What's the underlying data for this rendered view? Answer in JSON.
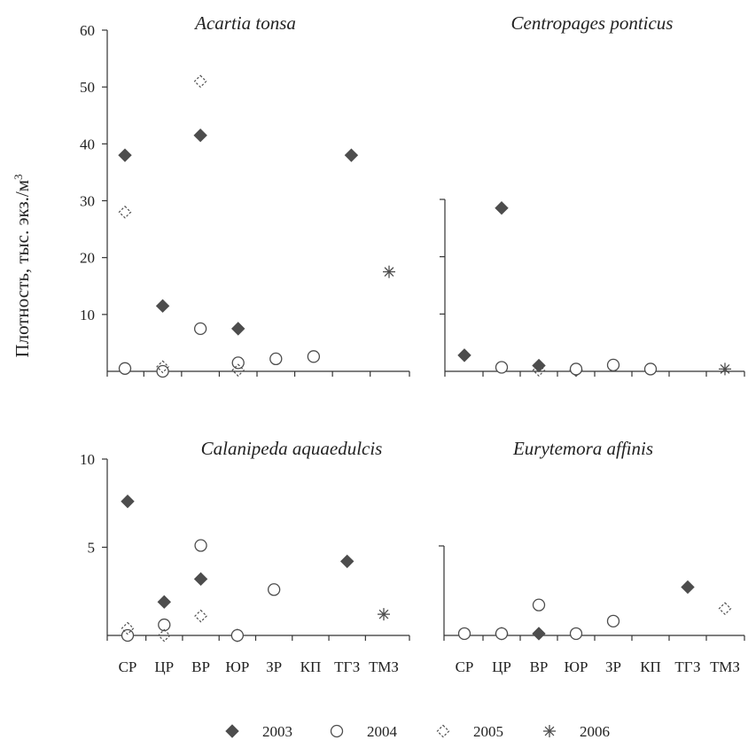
{
  "ylabel": "Плотность, тыс. экз./м",
  "ylabel_sup": "3",
  "categories": [
    "СР",
    "ЦР",
    "ВР",
    "ЮР",
    "ЗР",
    "КП",
    "ТГЗ",
    "ТМЗ"
  ],
  "legend": [
    {
      "year": "2003",
      "marker": "filled-diamond"
    },
    {
      "year": "2004",
      "marker": "open-circle"
    },
    {
      "year": "2005",
      "marker": "dashed-diamond"
    },
    {
      "year": "2006",
      "marker": "asterisk"
    }
  ],
  "colors": {
    "marker": "#4d4d4d",
    "axis": "#333333"
  },
  "chart_data": [
    {
      "type": "scatter",
      "title": "Acartia tonsa",
      "ylim": [
        0,
        60
      ],
      "yticks": [
        10,
        20,
        30,
        40,
        50,
        60
      ],
      "show_tick_labels": true,
      "series": [
        {
          "name": "2003",
          "points": [
            [
              0,
              38
            ],
            [
              1,
              11.5
            ],
            [
              2,
              41.5
            ],
            [
              3,
              7.5
            ],
            [
              6,
              38
            ]
          ]
        },
        {
          "name": "2004",
          "points": [
            [
              0,
              0.5
            ],
            [
              1,
              0
            ],
            [
              2,
              7.5
            ],
            [
              3,
              1.5
            ],
            [
              4,
              2.2
            ],
            [
              5,
              2.6
            ]
          ]
        },
        {
          "name": "2005",
          "points": [
            [
              0,
              28
            ],
            [
              1,
              0.8
            ],
            [
              2,
              51
            ],
            [
              3,
              0.2
            ]
          ]
        },
        {
          "name": "2006",
          "points": [
            [
              7,
              17.5
            ]
          ]
        }
      ]
    },
    {
      "type": "scatter",
      "title": "Centropages ponticus",
      "ylim": [
        0,
        30
      ],
      "yticks": [
        10,
        20,
        30
      ],
      "show_tick_labels": false,
      "series": [
        {
          "name": "2003",
          "points": [
            [
              0,
              2.8
            ],
            [
              1,
              28.5
            ],
            [
              2,
              1
            ],
            [
              3,
              0.2
            ]
          ]
        },
        {
          "name": "2004",
          "points": [
            [
              1,
              0.7
            ],
            [
              3,
              0.4
            ],
            [
              4,
              1.1
            ],
            [
              5,
              0.4
            ]
          ]
        },
        {
          "name": "2005",
          "points": [
            [
              2,
              0.2
            ]
          ]
        },
        {
          "name": "2006",
          "points": [
            [
              7,
              0.4
            ]
          ]
        }
      ]
    },
    {
      "type": "scatter",
      "title": "Calanipeda aquaedulcis",
      "ylim": [
        0,
        10
      ],
      "yticks": [
        5,
        10
      ],
      "show_tick_labels": true,
      "series": [
        {
          "name": "2003",
          "points": [
            [
              0,
              7.6
            ],
            [
              1,
              1.9
            ],
            [
              2,
              3.2
            ],
            [
              3,
              0
            ],
            [
              6,
              4.2
            ]
          ]
        },
        {
          "name": "2004",
          "points": [
            [
              0,
              0
            ],
            [
              1,
              0.6
            ],
            [
              2,
              5.1
            ],
            [
              3,
              0
            ],
            [
              4,
              2.6
            ]
          ]
        },
        {
          "name": "2005",
          "points": [
            [
              0,
              0.4
            ],
            [
              1,
              0
            ],
            [
              2,
              1.1
            ]
          ]
        },
        {
          "name": "2006",
          "points": [
            [
              7,
              1.2
            ]
          ]
        }
      ]
    },
    {
      "type": "scatter",
      "title": "Eurytemora affinis",
      "ylim": [
        0,
        5
      ],
      "yticks": [
        5
      ],
      "show_tick_labels": false,
      "series": [
        {
          "name": "2003",
          "points": [
            [
              1,
              0.1
            ],
            [
              2,
              0.1
            ],
            [
              6,
              2.7
            ]
          ]
        },
        {
          "name": "2004",
          "points": [
            [
              0,
              0.1
            ],
            [
              1,
              0.1
            ],
            [
              2,
              1.7
            ],
            [
              3,
              0.1
            ],
            [
              4,
              0.8
            ]
          ]
        },
        {
          "name": "2005",
          "points": [
            [
              7,
              1.5
            ]
          ]
        },
        {
          "name": "2006",
          "points": []
        }
      ]
    }
  ]
}
